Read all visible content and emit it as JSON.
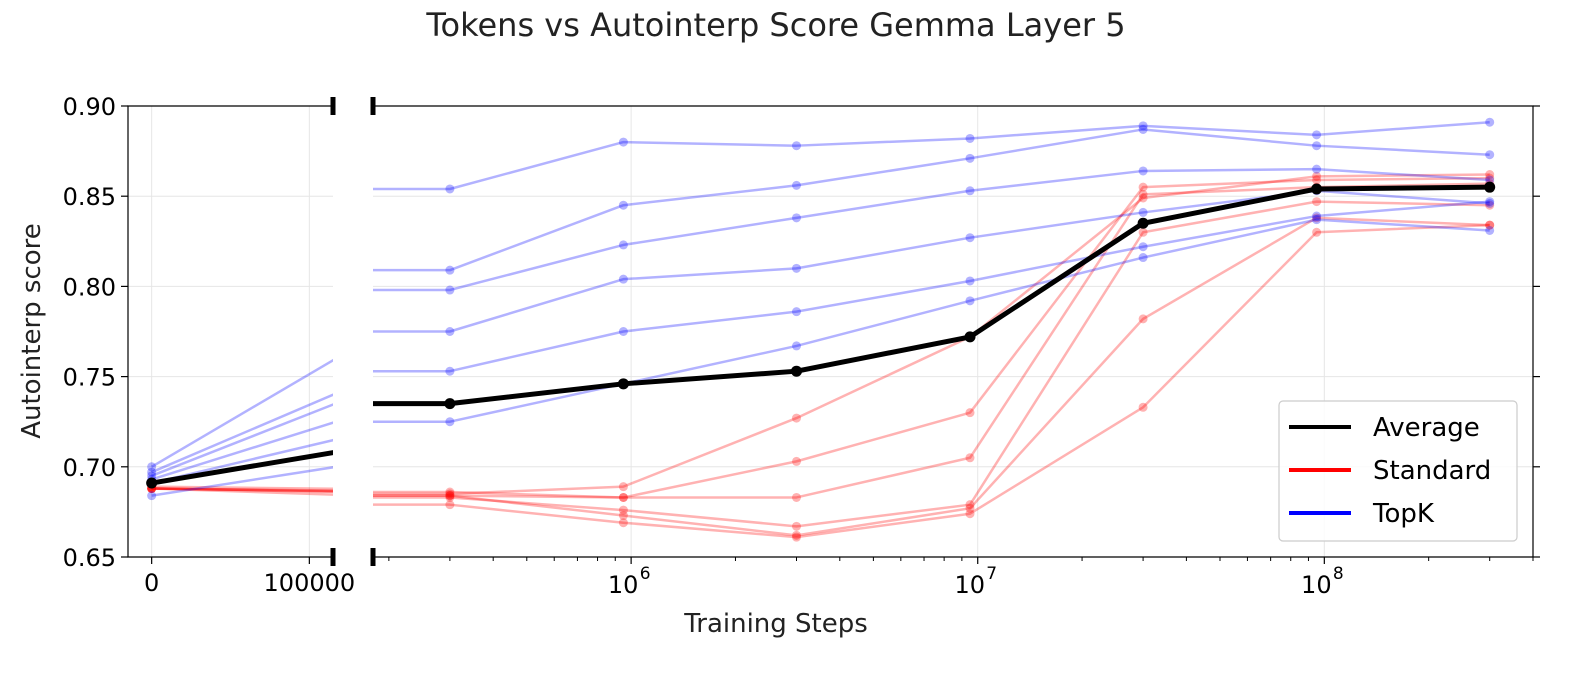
{
  "chart_data": {
    "type": "line",
    "title": "Tokens vs Autointerp Score Gemma Layer 5",
    "xlabel": "Training Steps",
    "ylabel": "Autointerp score",
    "ylim": [
      0.65,
      0.9
    ],
    "yticks": [
      "0.65",
      "0.70",
      "0.75",
      "0.80",
      "0.85",
      "0.90"
    ],
    "left_panel": {
      "xscale": "linear",
      "xlim": [
        -15000,
        115000
      ],
      "xticks": [
        {
          "value": 0,
          "label": "0"
        },
        {
          "value": 100000,
          "label": "100000"
        }
      ]
    },
    "right_panel": {
      "xscale": "log",
      "xlim": [
        180000,
        400000000
      ],
      "xticks": [
        {
          "value": 1000000,
          "base": "10",
          "exp": "6"
        },
        {
          "value": 10000000,
          "base": "10",
          "exp": "7"
        },
        {
          "value": 100000000,
          "base": "10",
          "exp": "8"
        }
      ]
    },
    "x": [
      0,
      300000,
      950000,
      3000000,
      9500000,
      30000000,
      95000000,
      300000000
    ],
    "series": [
      {
        "group": "Standard",
        "values": [
          0.688,
          0.685,
          0.689,
          0.727,
          0.772,
          0.849,
          0.861,
          0.862
        ]
      },
      {
        "group": "Standard",
        "values": [
          0.688,
          0.684,
          0.683,
          0.703,
          0.73,
          0.855,
          0.859,
          0.86
        ]
      },
      {
        "group": "Standard",
        "values": [
          0.689,
          0.686,
          0.683,
          0.683,
          0.705,
          0.851,
          0.855,
          0.857
        ]
      },
      {
        "group": "Standard",
        "values": [
          0.688,
          0.683,
          0.676,
          0.667,
          0.679,
          0.83,
          0.847,
          0.845
        ]
      },
      {
        "group": "Standard",
        "values": [
          0.688,
          0.684,
          0.673,
          0.662,
          0.677,
          0.782,
          0.838,
          0.834
        ]
      },
      {
        "group": "Standard",
        "values": [
          0.688,
          0.679,
          0.669,
          0.661,
          0.674,
          0.733,
          0.83,
          0.834
        ]
      },
      {
        "group": "TopK",
        "values": [
          0.7,
          0.854,
          0.88,
          0.878,
          0.882,
          0.889,
          0.884,
          0.891
        ]
      },
      {
        "group": "TopK",
        "values": [
          0.697,
          0.809,
          0.845,
          0.856,
          0.871,
          0.887,
          0.878,
          0.873
        ]
      },
      {
        "group": "TopK",
        "values": [
          0.695,
          0.798,
          0.823,
          0.838,
          0.853,
          0.864,
          0.865,
          0.859
        ]
      },
      {
        "group": "TopK",
        "values": [
          0.693,
          0.775,
          0.804,
          0.81,
          0.827,
          0.841,
          0.853,
          0.846
        ]
      },
      {
        "group": "TopK",
        "values": [
          0.691,
          0.753,
          0.775,
          0.786,
          0.803,
          0.822,
          0.839,
          0.847
        ]
      },
      {
        "group": "TopK",
        "values": [
          0.684,
          0.725,
          0.746,
          0.767,
          0.792,
          0.816,
          0.837,
          0.831
        ]
      },
      {
        "group": "Average",
        "values": [
          0.691,
          0.735,
          0.746,
          0.753,
          0.772,
          0.835,
          0.854,
          0.855
        ]
      }
    ],
    "legend": {
      "placement": "lower-right",
      "entries": [
        {
          "label": "Average",
          "color": "#000000"
        },
        {
          "label": "Standard",
          "color": "#ff0000"
        },
        {
          "label": "TopK",
          "color": "#0000ff"
        }
      ]
    },
    "grid": true
  }
}
